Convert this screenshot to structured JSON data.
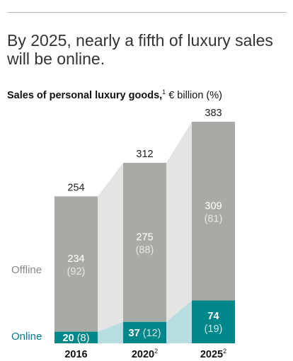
{
  "headline": "By 2025, nearly a fifth of luxury sales will be online.",
  "chart_data": {
    "type": "bar",
    "stacked": true,
    "title": "Sales of personal luxury goods,",
    "title_footnote": "1",
    "title_units": " € billion (%)",
    "categories": [
      "2016",
      "2020",
      "2025"
    ],
    "category_footnotes": [
      "",
      "2",
      "2"
    ],
    "series": [
      {
        "name": "Online",
        "values": [
          20,
          37,
          74
        ],
        "shares": [
          8,
          12,
          19
        ]
      },
      {
        "name": "Offline",
        "values": [
          234,
          275,
          309
        ],
        "shares": [
          92,
          88,
          81
        ]
      }
    ],
    "totals": [
      254,
      312,
      383
    ],
    "ylim": [
      0,
      383
    ],
    "grid": false,
    "colors": {
      "online": "#00878a",
      "offline": "#a8aba5",
      "online_link": "#b8dde0",
      "offline_link": "#e4e5e3",
      "online_label": "#007f8c",
      "offline_label": "#888a86",
      "total_text": "#222222",
      "value_text": "#ffffff",
      "share_on_offline": "#e8e8e6",
      "share_on_online": "#cfe8ea",
      "online_share_2016": "#ffffff"
    }
  }
}
